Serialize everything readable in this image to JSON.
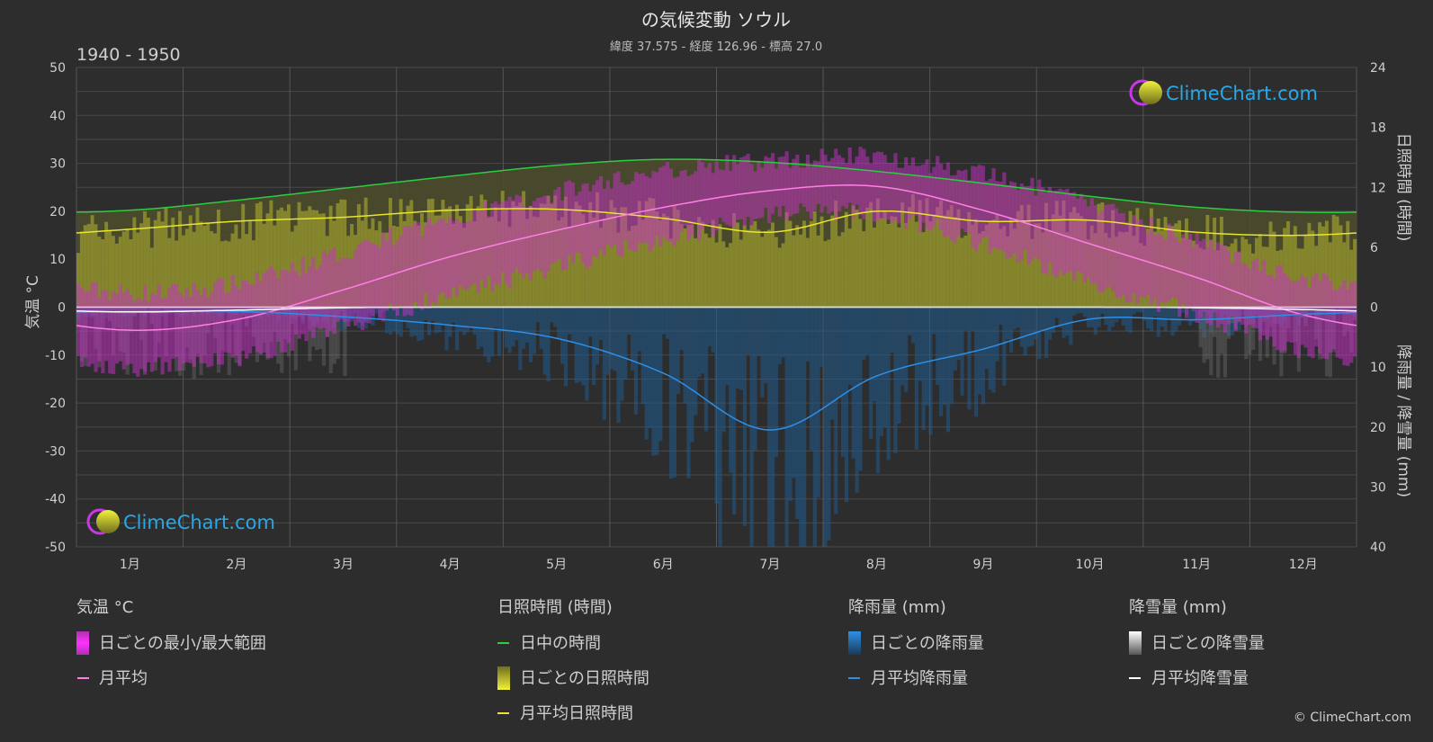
{
  "title": "の気候変動 ソウル",
  "subtitle": "緯度 37.575 - 経度 126.96 - 標高 27.0",
  "period": "1940 - 1950",
  "copyright": "© ClimeChart.com",
  "logo_text": "ClimeChart.com",
  "axes": {
    "left_label": "気温 °C",
    "right_top_label": "日照時間 (時間)",
    "right_bottom_label": "降雨量 / 降雪量 (mm)"
  },
  "legend": {
    "temperature": {
      "title": "気温 °C",
      "range": "日ごとの最小/最大範囲",
      "mean": "月平均"
    },
    "sunshine": {
      "title": "日照時間 (時間)",
      "daylight": "日中の時間",
      "daily": "日ごとの日照時間",
      "mean": "月平均日照時間"
    },
    "rain": {
      "title": "降雨量 (mm)",
      "daily": "日ごとの降雨量",
      "mean": "月平均降雨量"
    },
    "snow": {
      "title": "降雪量 (mm)",
      "daily": "日ごとの降雪量",
      "mean": "月平均降雪量"
    }
  },
  "colors": {
    "background": "#2d2d2d",
    "daylight": "#2ecc40",
    "sunshine_mean": "#e6e62e",
    "sunshine_bar": "#9a9a2e",
    "temp_mean": "#ff7fe6",
    "temp_range": "#c832c8",
    "rain_mean": "#2e8fe6",
    "rain_bar": "#1f5a8c",
    "snow_mean": "#ffffff",
    "logo_blue": "#2aa7e6"
  },
  "chart_data": {
    "type": "line",
    "categories": [
      "1月",
      "2月",
      "3月",
      "4月",
      "5月",
      "6月",
      "7月",
      "8月",
      "9月",
      "10月",
      "11月",
      "12月"
    ],
    "temp_axis": {
      "ylim": [
        -50,
        50
      ],
      "ticks": [
        50,
        40,
        30,
        20,
        10,
        0,
        -10,
        -20,
        -30,
        -40,
        -50
      ]
    },
    "sun_axis": {
      "ylim": [
        0,
        24
      ],
      "ticks": [
        24,
        18,
        12,
        6,
        0
      ]
    },
    "precip_axis": {
      "ylim": [
        0,
        40
      ],
      "ticks": [
        0,
        10,
        20,
        30,
        40
      ]
    },
    "series": [
      {
        "name": "月平均",
        "axis": "temp",
        "values": [
          -4.8,
          -2.6,
          3.6,
          10.5,
          16.0,
          20.8,
          24.3,
          25.2,
          20.2,
          13.2,
          6.2,
          -1.6
        ]
      },
      {
        "name": "日中の時間",
        "axis": "sun",
        "values": [
          9.7,
          10.7,
          11.9,
          13.1,
          14.2,
          14.8,
          14.5,
          13.6,
          12.4,
          11.1,
          10.0,
          9.5
        ]
      },
      {
        "name": "月平均日照時間",
        "axis": "sun",
        "values": [
          7.8,
          8.6,
          9.0,
          9.7,
          9.8,
          8.9,
          7.5,
          9.6,
          8.6,
          8.7,
          7.5,
          7.2
        ]
      },
      {
        "name": "月平均降雨量",
        "axis": "precip",
        "values": [
          0.7,
          0.7,
          1.6,
          3.0,
          5.2,
          11.0,
          20.5,
          11.5,
          7.0,
          2.0,
          2.1,
          1.2
        ]
      },
      {
        "name": "月平均降雪量",
        "axis": "precip",
        "values": [
          0.8,
          0.5,
          0.1,
          0,
          0,
          0,
          0,
          0,
          0,
          0,
          0.1,
          0.4
        ]
      }
    ],
    "temp_range": {
      "min": [
        -10.5,
        -8.5,
        -2.0,
        4.5,
        10.5,
        16.0,
        21.0,
        21.5,
        15.0,
        7.0,
        0.5,
        -7.0
      ],
      "max": [
        1.0,
        3.0,
        9.5,
        16.5,
        22.0,
        26.5,
        28.5,
        29.5,
        25.5,
        19.5,
        11.5,
        4.0
      ]
    }
  }
}
